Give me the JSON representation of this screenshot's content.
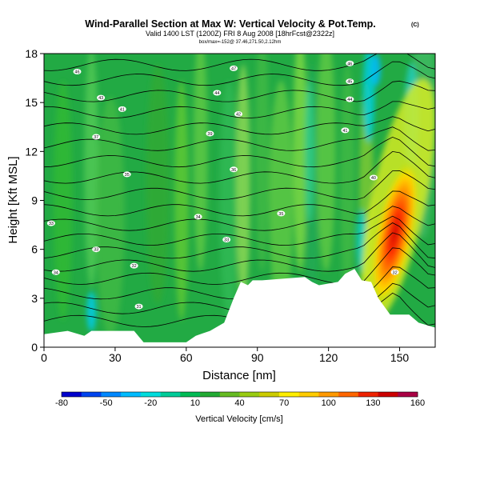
{
  "chart_data": {
    "type": "heatmap",
    "title": "Wind-Parallel Section at Max W: Vertical Velocity & Pot.Temp.",
    "title_mark": "(C)",
    "subtitle": "Valid 1400 LST (1200Z) FRI 8 Aug 2008 [18hrFcst@2322z]",
    "subsubtitle": "box/max=-152@ 37.46,271.50,2.12hm",
    "xlabel": "Distance [nm]",
    "ylabel": "Height [Kft MSL]",
    "xlim": [
      0,
      165
    ],
    "ylim": [
      0,
      18
    ],
    "x_ticks": [
      0,
      30,
      60,
      90,
      120,
      150
    ],
    "y_ticks": [
      0,
      3,
      6,
      9,
      12,
      15,
      18
    ],
    "colorbar": {
      "label": "Vertical Velocity [cm/s]",
      "tick_labels": [
        "-80",
        "-50",
        "-20",
        "10",
        "40",
        "70",
        "100",
        "130",
        "160"
      ],
      "colors": [
        "#0000cc",
        "#0044ee",
        "#0088ff",
        "#00bbff",
        "#00dddd",
        "#00cc99",
        "#00bb55",
        "#22aa33",
        "#66bb22",
        "#99cc11",
        "#cccc00",
        "#ffee00",
        "#ffcc00",
        "#ff9900",
        "#ff6600",
        "#ee2200",
        "#cc0000",
        "#aa0044"
      ]
    },
    "terrain_height_kft": [
      [
        0,
        0.8
      ],
      [
        10,
        1.0
      ],
      [
        17,
        0.7
      ],
      [
        20,
        1.0
      ],
      [
        38,
        1.0
      ],
      [
        42,
        0.3
      ],
      [
        60,
        0.3
      ],
      [
        64,
        0.7
      ],
      [
        70,
        1.0
      ],
      [
        76,
        1.5
      ],
      [
        80,
        3.0
      ],
      [
        83,
        4.0
      ],
      [
        86,
        3.8
      ],
      [
        88,
        4.1
      ],
      [
        92,
        4.1
      ],
      [
        110,
        4.3
      ],
      [
        113,
        4.0
      ],
      [
        116,
        3.8
      ],
      [
        124,
        4.0
      ],
      [
        127,
        4.5
      ],
      [
        131,
        4.8
      ],
      [
        134,
        4.1
      ],
      [
        138,
        4.0
      ],
      [
        141,
        3.0
      ],
      [
        144,
        2.4
      ],
      [
        146,
        2.0
      ],
      [
        154,
        2.0
      ],
      [
        158,
        1.5
      ],
      [
        165,
        1.2
      ]
    ],
    "updraft_max_location": {
      "x_nm": 148,
      "height_kft": 7.0,
      "value_cm_s": 160
    },
    "isentrope_labels": [
      {
        "x": 14,
        "y": 16.8,
        "text": "46"
      },
      {
        "x": 24,
        "y": 15.2,
        "text": "43"
      },
      {
        "x": 33,
        "y": 14.5,
        "text": "41"
      },
      {
        "x": 22,
        "y": 12.8,
        "text": "37"
      },
      {
        "x": 35,
        "y": 10.5,
        "text": "35"
      },
      {
        "x": 3,
        "y": 7.5,
        "text": "33"
      },
      {
        "x": 22,
        "y": 5.9,
        "text": "33"
      },
      {
        "x": 5,
        "y": 4.5,
        "text": "34"
      },
      {
        "x": 38,
        "y": 4.9,
        "text": "32"
      },
      {
        "x": 40,
        "y": 2.4,
        "text": "31"
      },
      {
        "x": 80,
        "y": 17.0,
        "text": "47"
      },
      {
        "x": 73,
        "y": 15.5,
        "text": "44"
      },
      {
        "x": 82,
        "y": 14.2,
        "text": "42"
      },
      {
        "x": 70,
        "y": 13.0,
        "text": "39"
      },
      {
        "x": 80,
        "y": 10.8,
        "text": "36"
      },
      {
        "x": 65,
        "y": 7.9,
        "text": "34"
      },
      {
        "x": 77,
        "y": 6.5,
        "text": "33"
      },
      {
        "x": 100,
        "y": 8.1,
        "text": "35"
      },
      {
        "x": 129,
        "y": 17.3,
        "text": "46"
      },
      {
        "x": 129,
        "y": 16.2,
        "text": "45"
      },
      {
        "x": 129,
        "y": 15.1,
        "text": "44"
      },
      {
        "x": 127,
        "y": 13.2,
        "text": "41"
      },
      {
        "x": 139,
        "y": 10.3,
        "text": "40"
      },
      {
        "x": 148,
        "y": 4.5,
        "text": "32"
      }
    ]
  }
}
